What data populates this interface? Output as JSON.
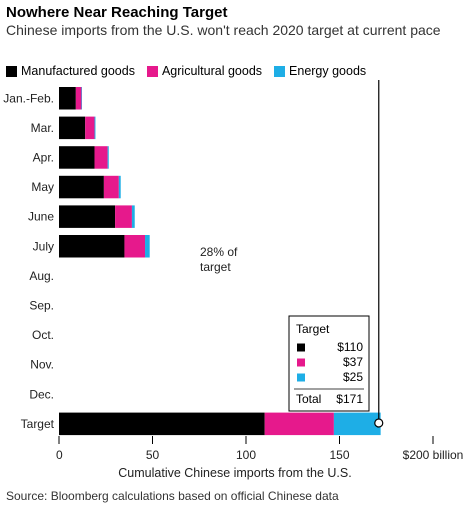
{
  "title": "Nowhere Near Reaching Target",
  "subtitle": "Chinese imports from the U.S. won't reach 2020 target at current pace",
  "source": "Source: Bloomberg calculations based on official Chinese data",
  "annotation": "28% of target",
  "colors": {
    "manufactured": "#000000",
    "agricultural": "#e6198c",
    "energy": "#1eaee6"
  },
  "chart_data": {
    "type": "bar",
    "orientation": "horizontal",
    "stacked": true,
    "categories": [
      "Jan.-Feb.",
      "Mar.",
      "Apr.",
      "May",
      "June",
      "July",
      "Aug.",
      "Sep.",
      "Oct.",
      "Nov.",
      "Dec.",
      "Target"
    ],
    "series": [
      {
        "name": "Manufactured goods",
        "values": [
          9,
          14,
          19,
          24,
          30,
          35,
          null,
          null,
          null,
          null,
          null,
          110
        ]
      },
      {
        "name": "Agricultural goods",
        "values": [
          3,
          5,
          7,
          8,
          9,
          11,
          null,
          null,
          null,
          null,
          null,
          37
        ]
      },
      {
        "name": "Energy goods",
        "values": [
          0.3,
          0.5,
          0.6,
          1,
          1.5,
          2.5,
          null,
          null,
          null,
          null,
          null,
          25
        ]
      }
    ],
    "xlabel": "Cumulative Chinese imports from the U.S.",
    "xlim": [
      0,
      200
    ],
    "xticks": [
      "0",
      "50",
      "100",
      "150",
      "$200 billion"
    ],
    "xtick_values": [
      0,
      50,
      100,
      150,
      200
    ],
    "target_line": 171,
    "target_box": {
      "heading": "Target",
      "items": [
        {
          "series": "Manufactured goods",
          "label": "$110"
        },
        {
          "series": "Agricultural goods",
          "label": "$37"
        },
        {
          "series": "Energy goods",
          "label": "$25"
        }
      ],
      "total_label": "Total",
      "total_value": "$171"
    },
    "grid": false,
    "legend": "top-left"
  }
}
